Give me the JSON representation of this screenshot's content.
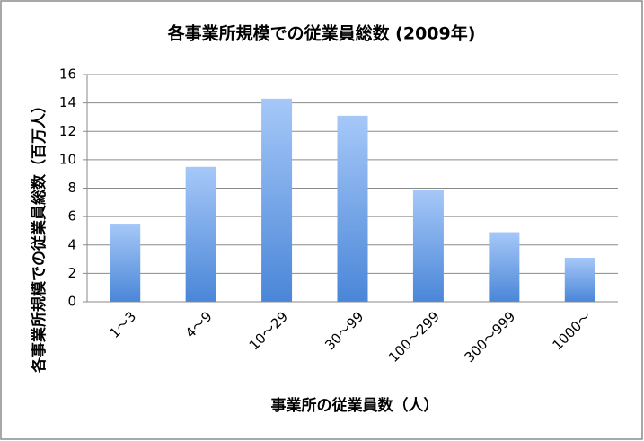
{
  "chart_data": {
    "type": "bar",
    "title": "各事業所規模での従業員総数 (2009年)",
    "x_label": "事業所の従業員数（人）",
    "y_label": "各事業所規模での従業員総数（百万人）",
    "categories": [
      "1〜3",
      "4〜9",
      "10〜29",
      "30〜99",
      "100〜299",
      "300〜999",
      "1000〜"
    ],
    "values": [
      5.5,
      9.5,
      14.3,
      13.1,
      7.9,
      4.9,
      3.1
    ],
    "color": "#4a86d8",
    "ylim": [
      0,
      16
    ],
    "yticks": [
      0,
      2,
      4,
      6,
      8,
      10,
      12,
      14,
      16
    ],
    "grid": true
  }
}
